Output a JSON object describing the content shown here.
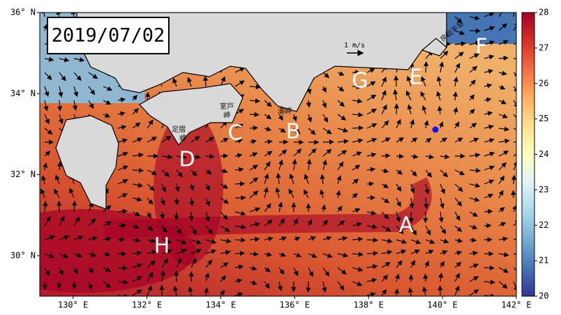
{
  "date_label": "2019/07/02",
  "map": {
    "lonlim": [
      129.1,
      142
    ],
    "latlim": [
      29,
      36
    ],
    "lon_ticks": [
      {
        "value": 130,
        "label": "130° E"
      },
      {
        "value": 132,
        "label": "132° E"
      },
      {
        "value": 134,
        "label": "134° E"
      },
      {
        "value": 136,
        "label": "136° E"
      },
      {
        "value": 138,
        "label": "138° E"
      },
      {
        "value": 140,
        "label": "140° E"
      },
      {
        "value": 142,
        "label": "142° E"
      }
    ],
    "lat_ticks": [
      {
        "value": 30,
        "label": "30° N"
      },
      {
        "value": 32,
        "label": "32° N"
      },
      {
        "value": 34,
        "label": "34° N"
      },
      {
        "value": 36,
        "label": "36° N"
      }
    ]
  },
  "colorbar": {
    "lim": [
      20,
      28
    ],
    "ticks": [
      20,
      21,
      22,
      23,
      24,
      25,
      26,
      27,
      28
    ]
  },
  "scale_label": "1 m/s",
  "letters": [
    "A",
    "B",
    "C",
    "D",
    "E",
    "F",
    "G",
    "H"
  ],
  "places": [
    "室戸",
    "岬",
    "足摺",
    "岬",
    "潮岬",
    "房総半島"
  ]
}
